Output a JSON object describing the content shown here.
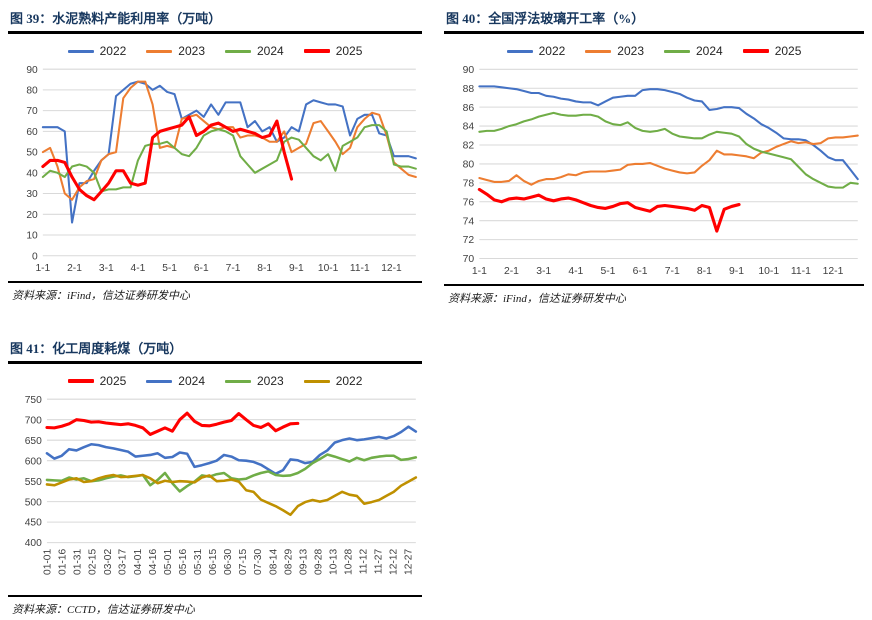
{
  "chart_data": [
    {
      "id": "fig39",
      "type": "line",
      "title": "图 39：水泥熟料产能利用率（万吨）",
      "source": "资料来源：iFind，信达证券研发中心",
      "ylim": [
        0,
        90
      ],
      "y_step": 10,
      "y_ticks": [
        0,
        10,
        20,
        30,
        40,
        50,
        60,
        70,
        80,
        90
      ],
      "grid": "horizontal",
      "legend_position": "top",
      "x_labels": [
        "1-1",
        "2-1",
        "3-1",
        "4-1",
        "5-1",
        "6-1",
        "7-1",
        "8-1",
        "9-1",
        "10-1",
        "11-1",
        "12-1"
      ],
      "series": [
        {
          "name": "2022",
          "color": "#4472C4",
          "width": 2,
          "values": [
            62,
            62,
            62,
            60,
            16,
            35,
            35,
            41,
            46,
            49,
            77,
            80,
            83,
            84,
            83,
            80,
            82,
            79,
            78,
            66,
            68,
            70,
            67,
            73,
            68,
            74,
            74,
            74,
            62,
            65,
            60,
            62,
            55,
            57,
            62,
            60,
            73,
            75,
            74,
            73,
            73,
            72,
            58,
            66,
            68,
            68,
            59,
            58,
            48,
            48,
            48,
            47
          ]
        },
        {
          "name": "2023",
          "color": "#ED7D31",
          "width": 2,
          "values": [
            50,
            52,
            43,
            30,
            27,
            33,
            36,
            37,
            46,
            49,
            50,
            76,
            81,
            84,
            84,
            73,
            52,
            53,
            52,
            66,
            67,
            68,
            65,
            62,
            61,
            62,
            62,
            57,
            58,
            58,
            57,
            55,
            55,
            60,
            50,
            52,
            54,
            64,
            65,
            60,
            55,
            49,
            52,
            62,
            66,
            69,
            68,
            58,
            45,
            42,
            39,
            38
          ]
        },
        {
          "name": "2024",
          "color": "#70AD47",
          "width": 2,
          "values": [
            38,
            41,
            40,
            38,
            43,
            44,
            43,
            40,
            31,
            32,
            32,
            33,
            33,
            46,
            53,
            54,
            54,
            55,
            52,
            49,
            48,
            52,
            58,
            60,
            61,
            60,
            58,
            48,
            44,
            40,
            42,
            44,
            46,
            55,
            57,
            56,
            52,
            48,
            46,
            49,
            41,
            53,
            55,
            57,
            62,
            63,
            63,
            60,
            44,
            43,
            43,
            42
          ]
        },
        {
          "name": "2025",
          "color": "#FF0000",
          "width": 3,
          "values": [
            43,
            46,
            46,
            45,
            38,
            32,
            29,
            27,
            31,
            35,
            41,
            41,
            35,
            34,
            35,
            57,
            60,
            61,
            62,
            63,
            67,
            58,
            60,
            63,
            64,
            62,
            60,
            61,
            60,
            59,
            57,
            58,
            65,
            50,
            37
          ]
        }
      ]
    },
    {
      "id": "fig40",
      "type": "line",
      "title": "图 40：全国浮法玻璃开工率（%）",
      "source": "资料来源：iFind，信达证券研发中心",
      "ylim": [
        70,
        90
      ],
      "y_step": 2,
      "y_ticks": [
        70,
        72,
        74,
        76,
        78,
        80,
        82,
        84,
        86,
        88,
        90
      ],
      "grid": "horizontal",
      "legend_position": "top",
      "x_labels": [
        "1-1",
        "2-1",
        "3-1",
        "4-1",
        "5-1",
        "6-1",
        "7-1",
        "8-1",
        "9-1",
        "10-1",
        "11-1",
        "12-1"
      ],
      "series": [
        {
          "name": "2022",
          "color": "#4472C4",
          "width": 2,
          "values": [
            88.2,
            88.2,
            88.2,
            88.1,
            88.0,
            87.9,
            87.7,
            87.5,
            87.5,
            87.2,
            87.1,
            86.9,
            86.8,
            86.6,
            86.5,
            86.5,
            86.2,
            86.6,
            87.0,
            87.1,
            87.2,
            87.2,
            87.8,
            87.9,
            87.9,
            87.8,
            87.6,
            87.4,
            87.0,
            86.7,
            86.6,
            85.7,
            85.8,
            86.0,
            86.0,
            85.9,
            85.3,
            84.8,
            84.2,
            83.8,
            83.3,
            82.7,
            82.6,
            82.6,
            82.5,
            82.0,
            81.4,
            80.7,
            80.4,
            80.4,
            79.4,
            78.4
          ]
        },
        {
          "name": "2023",
          "color": "#ED7D31",
          "width": 2,
          "values": [
            78.5,
            78.3,
            78.1,
            78.1,
            78.2,
            78.8,
            78.2,
            77.8,
            78.2,
            78.4,
            78.4,
            78.6,
            78.9,
            78.8,
            79.1,
            79.2,
            79.2,
            79.2,
            79.3,
            79.4,
            79.9,
            80.0,
            80.0,
            80.1,
            79.8,
            79.5,
            79.3,
            79.1,
            79.0,
            79.1,
            79.8,
            80.4,
            81.4,
            81.0,
            81.0,
            80.9,
            80.8,
            80.6,
            81.2,
            81.4,
            81.8,
            82.1,
            82.4,
            82.2,
            82.3,
            82.1,
            82.2,
            82.7,
            82.8,
            82.8,
            82.9,
            83.0
          ]
        },
        {
          "name": "2024",
          "color": "#70AD47",
          "width": 2,
          "values": [
            83.4,
            83.5,
            83.5,
            83.7,
            84.0,
            84.2,
            84.5,
            84.7,
            85.0,
            85.2,
            85.4,
            85.2,
            85.1,
            85.1,
            85.2,
            85.2,
            85.0,
            84.5,
            84.2,
            84.1,
            84.4,
            83.8,
            83.5,
            83.4,
            83.5,
            83.7,
            83.2,
            82.9,
            82.8,
            82.7,
            82.7,
            83.1,
            83.4,
            83.3,
            83.2,
            82.9,
            82.1,
            81.6,
            81.3,
            81.1,
            80.9,
            80.7,
            80.5,
            79.7,
            78.9,
            78.4,
            78.0,
            77.6,
            77.5,
            77.5,
            78.0,
            77.9
          ]
        },
        {
          "name": "2025",
          "color": "#FF0000",
          "width": 3,
          "values": [
            77.3,
            76.8,
            76.2,
            76.0,
            76.3,
            76.4,
            76.3,
            76.5,
            76.7,
            76.3,
            76.1,
            76.3,
            76.4,
            76.2,
            75.9,
            75.6,
            75.4,
            75.3,
            75.5,
            75.8,
            75.9,
            75.4,
            75.2,
            75.0,
            75.5,
            75.6,
            75.5,
            75.4,
            75.3,
            75.1,
            75.6,
            75.4,
            72.9,
            75.2,
            75.5,
            75.7
          ]
        }
      ]
    },
    {
      "id": "fig41",
      "type": "line",
      "title": "图 41：化工周度耗煤（万吨）",
      "source": "资料来源：CCTD，信达证券研发中心",
      "ylim": [
        400,
        750
      ],
      "y_step": 50,
      "y_ticks": [
        400,
        450,
        500,
        550,
        600,
        650,
        700,
        750
      ],
      "grid": "horizontal",
      "legend_position": "top",
      "x_label_rotate": true,
      "x_labels": [
        "01-01",
        "01-16",
        "01-31",
        "02-15",
        "03-02",
        "03-17",
        "04-01",
        "04-16",
        "05-01",
        "05-16",
        "05-31",
        "06-15",
        "06-30",
        "07-15",
        "07-30",
        "08-14",
        "08-29",
        "09-13",
        "09-28",
        "10-13",
        "10-28",
        "11-12",
        "11-27",
        "12-12",
        "12-27"
      ],
      "series": [
        {
          "name": "2025",
          "color": "#FF0000",
          "width": 3,
          "values": [
            681,
            680,
            684,
            690,
            700,
            698,
            694,
            695,
            692,
            690,
            688,
            690,
            686,
            680,
            664,
            672,
            680,
            672,
            700,
            716,
            696,
            686,
            685,
            689,
            694,
            698,
            715,
            700,
            686,
            681,
            690,
            673,
            682,
            690,
            691
          ]
        },
        {
          "name": "2024",
          "color": "#4472C4",
          "width": 2.5,
          "values": [
            618,
            605,
            612,
            628,
            625,
            633,
            640,
            638,
            633,
            630,
            626,
            622,
            610,
            612,
            614,
            618,
            607,
            609,
            620,
            617,
            585,
            589,
            594,
            600,
            614,
            610,
            601,
            600,
            597,
            590,
            579,
            568,
            577,
            603,
            601,
            594,
            597,
            614,
            625,
            644,
            650,
            654,
            650,
            652,
            655,
            658,
            654,
            660,
            670,
            683,
            671
          ]
        },
        {
          "name": "2023",
          "color": "#70AD47",
          "width": 2.5,
          "values": [
            553,
            552,
            551,
            559,
            554,
            557,
            550,
            552,
            557,
            561,
            564,
            560,
            562,
            565,
            540,
            553,
            570,
            545,
            525,
            538,
            549,
            564,
            561,
            567,
            570,
            557,
            554,
            556,
            564,
            570,
            574,
            565,
            563,
            564,
            570,
            580,
            594,
            604,
            615,
            610,
            604,
            598,
            607,
            601,
            607,
            610,
            612,
            612,
            602,
            604,
            608
          ]
        },
        {
          "name": "2022",
          "color": "#BF9000",
          "width": 2.5,
          "values": [
            542,
            540,
            547,
            554,
            557,
            548,
            550,
            557,
            562,
            565,
            560,
            561,
            563,
            565,
            557,
            545,
            551,
            548,
            550,
            549,
            547,
            559,
            564,
            550,
            551,
            554,
            549,
            528,
            524,
            505,
            497,
            489,
            479,
            468,
            489,
            499,
            504,
            500,
            504,
            514,
            524,
            517,
            514,
            495,
            499,
            504,
            514,
            524,
            539,
            549,
            559
          ]
        }
      ]
    }
  ]
}
